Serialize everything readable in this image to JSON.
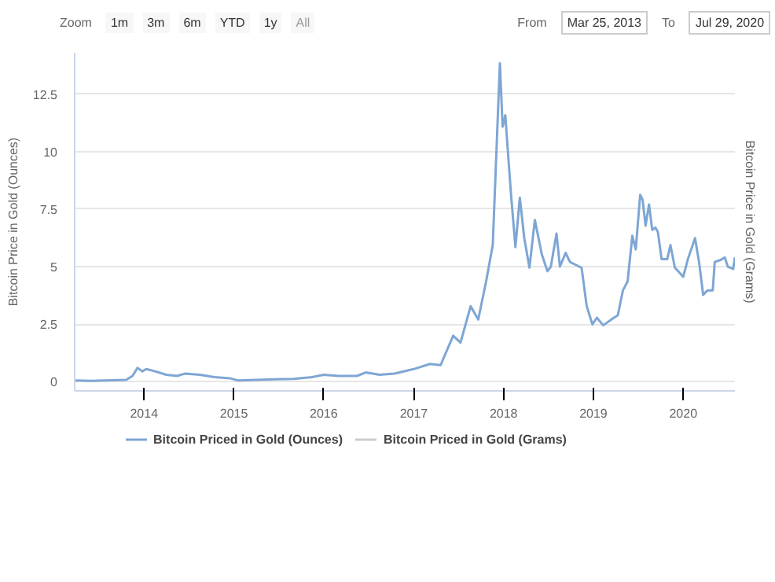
{
  "chart_data": {
    "type": "line",
    "ylabel": "Bitcoin Price in Gold (Ounces)",
    "y2label": "Bitcoin Price in Gold (Grams)",
    "annotations": [
      "Zoom",
      "1m",
      "3m",
      "6m",
      "YTD",
      "1y",
      "All",
      "From",
      "Mar 25, 2013",
      "To",
      "Jul 29, 2020"
    ],
    "xlim": [
      "2013-03-25",
      "2020-07-29"
    ],
    "ylim": [
      -0.4,
      14.3
    ],
    "xticks": [
      {
        "value": "2014-01-01",
        "label": "2014"
      },
      {
        "value": "2015-01-01",
        "label": "2015"
      },
      {
        "value": "2016-01-01",
        "label": "2016"
      },
      {
        "value": "2017-01-01",
        "label": "2017"
      },
      {
        "value": "2018-01-01",
        "label": "2018"
      },
      {
        "value": "2019-01-01",
        "label": "2019"
      },
      {
        "value": "2020-01-01",
        "label": "2020"
      }
    ],
    "yticks": [
      0,
      2.5,
      5,
      7.5,
      10,
      12.5
    ],
    "grid": "y",
    "legend": "bottom",
    "marker": "none",
    "line_style": "solid",
    "series": [
      {
        "name": "Bitcoin Priced in Gold (Ounces)",
        "color": "#7ea6d4",
        "x": [
          "2013-03-25",
          "2013-06-01",
          "2013-10-20",
          "2013-11-15",
          "2013-12-05",
          "2013-12-25",
          "2014-01-10",
          "2014-02-15",
          "2014-04-01",
          "2014-05-15",
          "2014-06-15",
          "2014-08-15",
          "2014-10-15",
          "2014-12-15",
          "2015-01-20",
          "2015-04-01",
          "2015-06-15",
          "2015-09-01",
          "2015-11-15",
          "2016-01-01",
          "2016-03-01",
          "2016-05-15",
          "2016-06-20",
          "2016-08-15",
          "2016-10-15",
          "2017-01-08",
          "2017-03-08",
          "2017-04-20",
          "2017-06-10",
          "2017-07-10",
          "2017-08-20",
          "2017-09-20",
          "2017-10-22",
          "2017-11-18",
          "2017-12-17",
          "2017-12-28",
          "2018-01-08",
          "2018-01-30",
          "2018-02-18",
          "2018-03-08",
          "2018-03-26",
          "2018-04-16",
          "2018-05-08",
          "2018-06-05",
          "2018-06-28",
          "2018-07-12",
          "2018-08-04",
          "2018-08-18",
          "2018-09-10",
          "2018-09-28",
          "2018-11-14",
          "2018-12-05",
          "2018-12-28",
          "2019-01-15",
          "2019-02-10",
          "2019-03-25",
          "2019-04-10",
          "2019-05-01",
          "2019-05-20",
          "2019-06-08",
          "2019-06-22",
          "2019-07-10",
          "2019-07-20",
          "2019-08-01",
          "2019-08-15",
          "2019-08-28",
          "2019-09-10",
          "2019-09-20",
          "2019-10-05",
          "2019-10-28",
          "2019-11-10",
          "2019-11-28",
          "2020-01-01",
          "2020-01-20",
          "2020-02-18",
          "2020-03-06",
          "2020-03-22",
          "2020-04-08",
          "2020-04-30",
          "2020-05-08",
          "2020-06-03",
          "2020-06-18",
          "2020-06-30",
          "2020-07-22",
          "2020-07-29"
        ],
        "values": [
          0.05,
          0.04,
          0.08,
          0.25,
          0.6,
          0.45,
          0.55,
          0.45,
          0.3,
          0.25,
          0.35,
          0.3,
          0.2,
          0.15,
          0.05,
          0.08,
          0.1,
          0.12,
          0.2,
          0.3,
          0.25,
          0.25,
          0.4,
          0.3,
          0.35,
          0.57,
          0.77,
          0.72,
          2.0,
          1.7,
          3.28,
          2.7,
          4.36,
          5.94,
          13.84,
          11.08,
          11.58,
          8.3,
          5.85,
          8.0,
          6.24,
          4.96,
          7.03,
          5.55,
          4.8,
          5.0,
          6.44,
          5.0,
          5.6,
          5.2,
          4.95,
          3.27,
          2.49,
          2.78,
          2.45,
          2.78,
          2.88,
          3.97,
          4.36,
          6.34,
          5.75,
          8.12,
          7.9,
          6.78,
          7.7,
          6.6,
          6.7,
          6.5,
          5.33,
          5.33,
          5.94,
          4.96,
          4.56,
          5.33,
          6.24,
          5.15,
          3.77,
          3.97,
          3.97,
          5.2,
          5.3,
          5.4,
          5.0,
          4.9,
          5.4
        ]
      },
      {
        "name": "Bitcoin Priced in Gold (Grams)",
        "color": "#cccccc"
      }
    ]
  }
}
